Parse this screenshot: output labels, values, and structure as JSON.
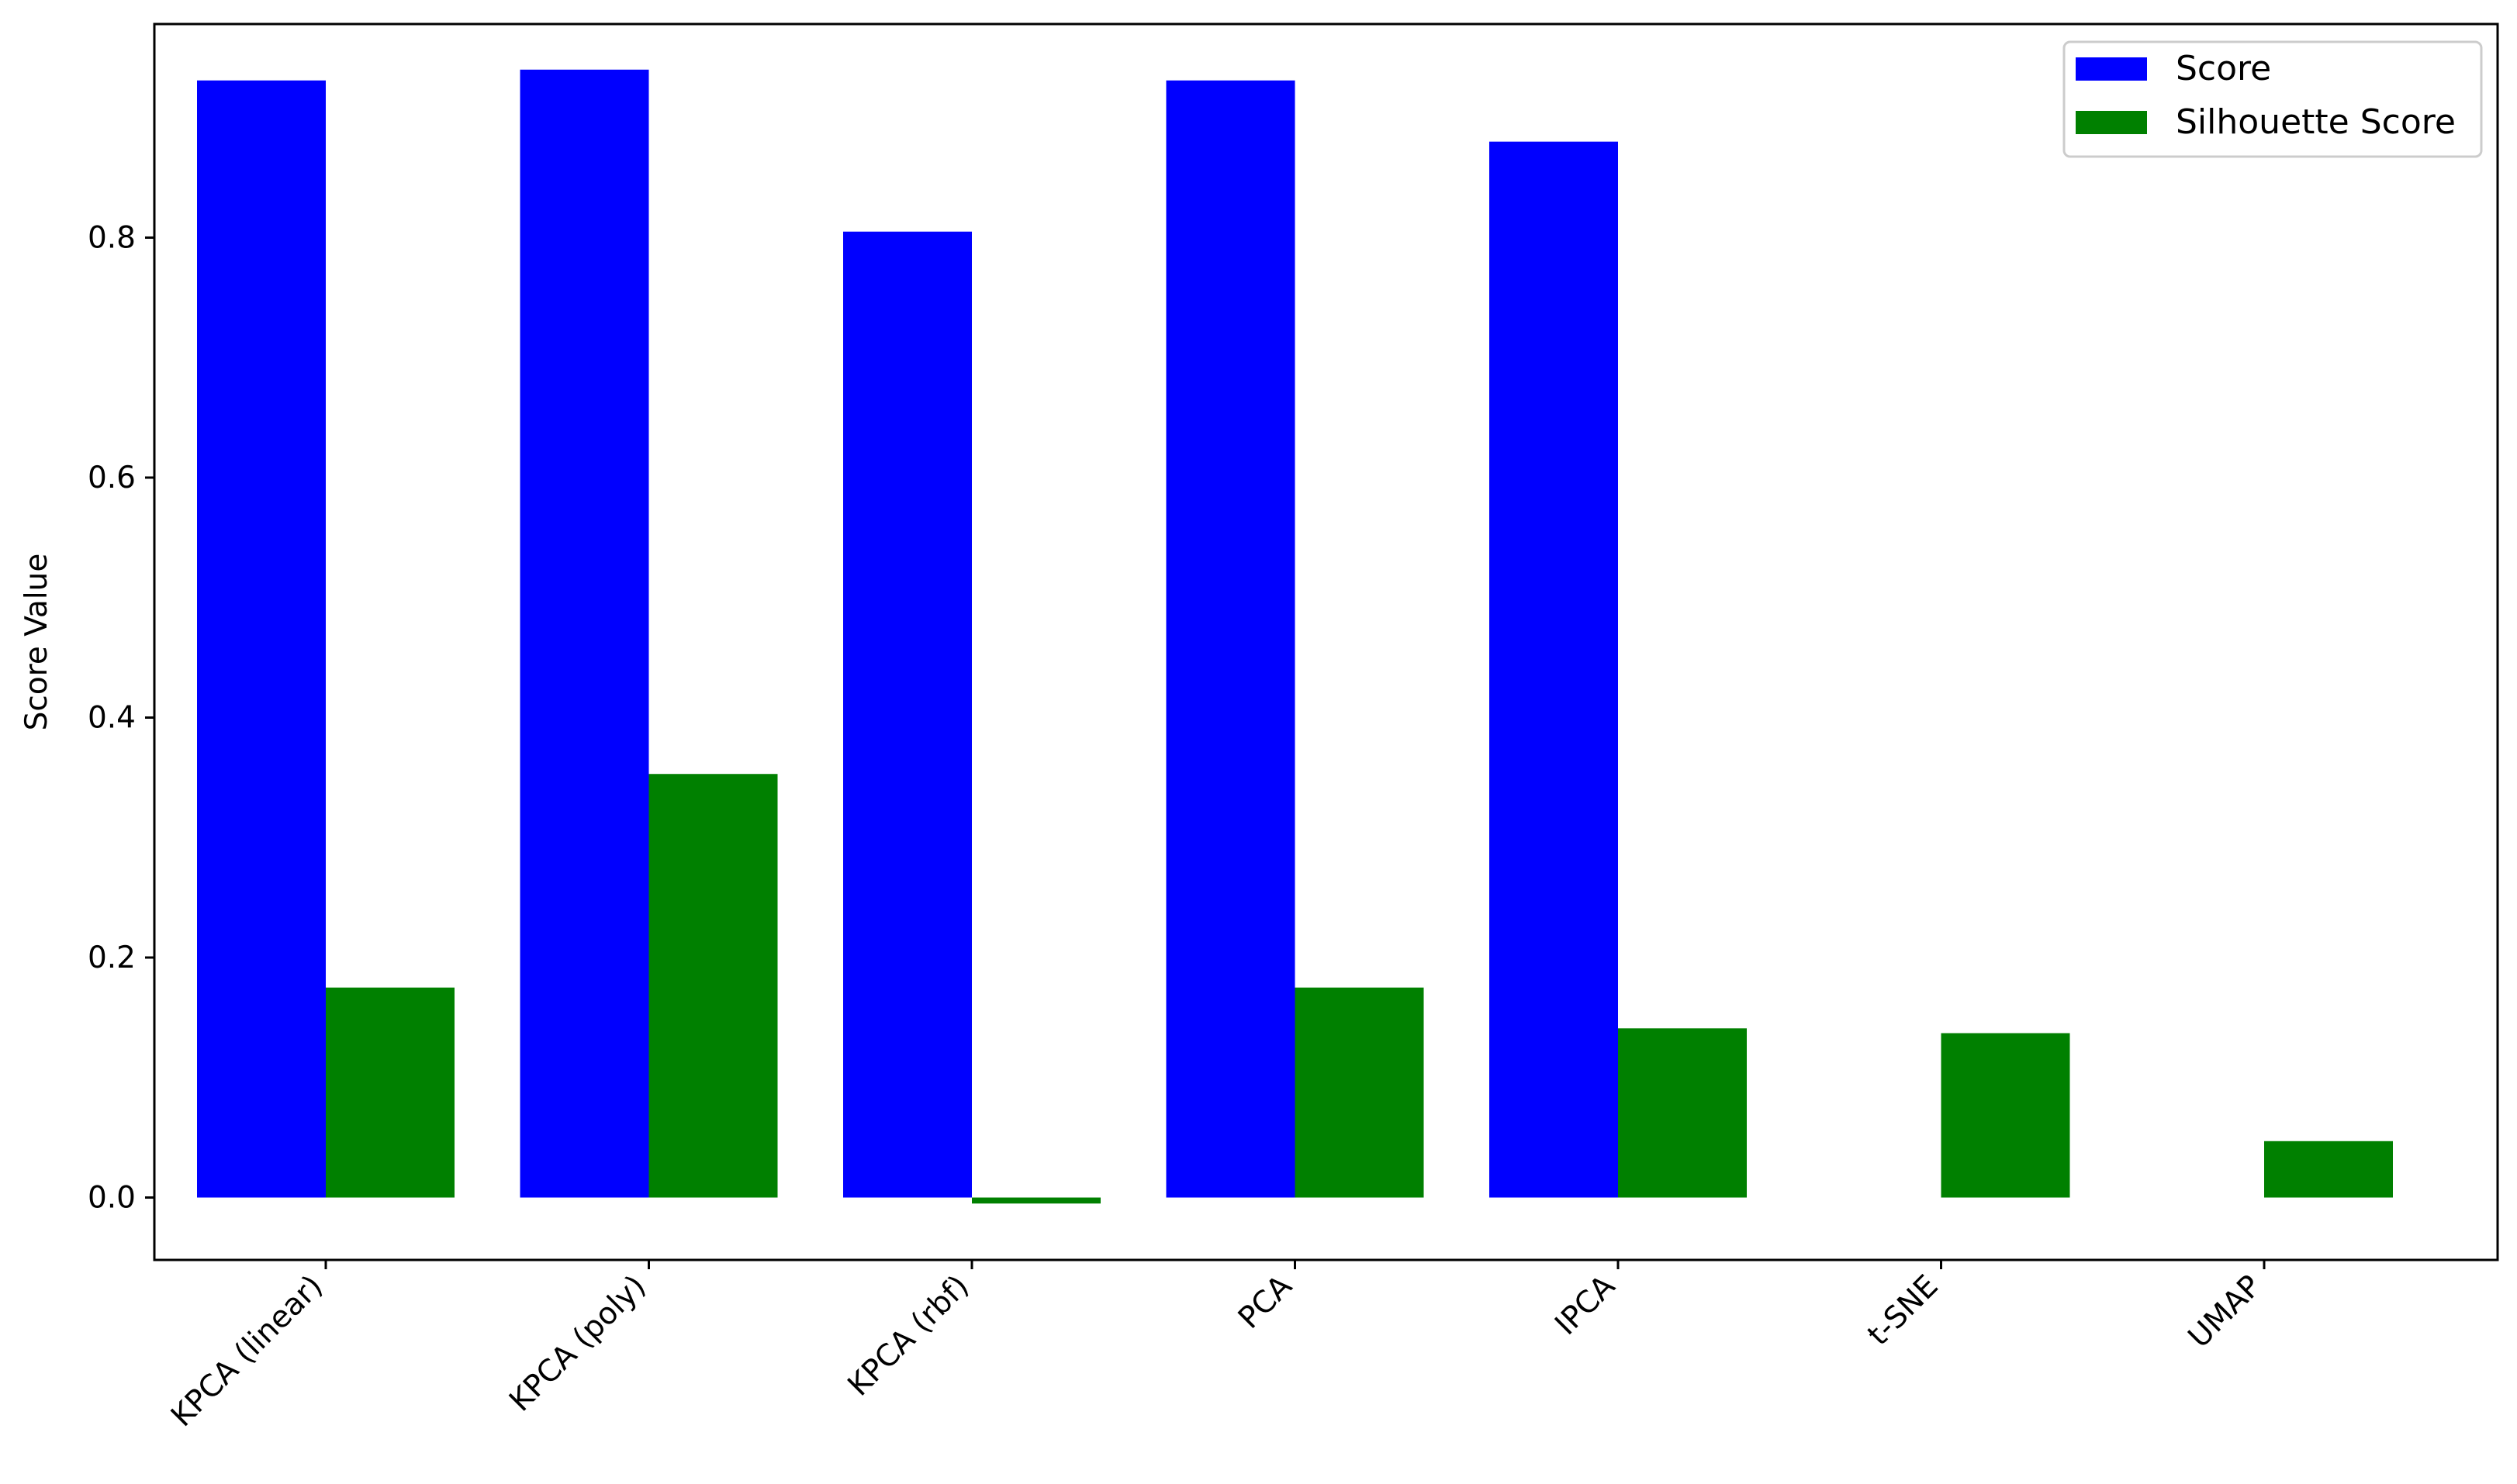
{
  "chart_data": {
    "type": "bar",
    "title": "",
    "xlabel": "",
    "ylabel": "Score Value",
    "categories": [
      "KPCA (linear)",
      "KPCA (poly)",
      "KPCA (rbf)",
      "PCA",
      "IPCA",
      "t-SNE",
      "UMAP"
    ],
    "series": [
      {
        "name": "Score",
        "color": "#0000ff",
        "values": [
          0.931,
          0.94,
          0.805,
          0.931,
          0.88,
          null,
          null
        ]
      },
      {
        "name": "Silhouette Score",
        "color": "#008000",
        "values": [
          0.175,
          0.353,
          -0.005,
          0.175,
          0.141,
          0.137,
          0.047
        ]
      }
    ],
    "ylim": [
      -0.052,
      0.978
    ],
    "yticks": [
      0.0,
      0.2,
      0.4,
      0.6,
      0.8
    ],
    "ytick_labels": [
      "0.0",
      "0.2",
      "0.4",
      "0.6",
      "0.8"
    ],
    "grid": false,
    "legend_position": "top-right"
  }
}
